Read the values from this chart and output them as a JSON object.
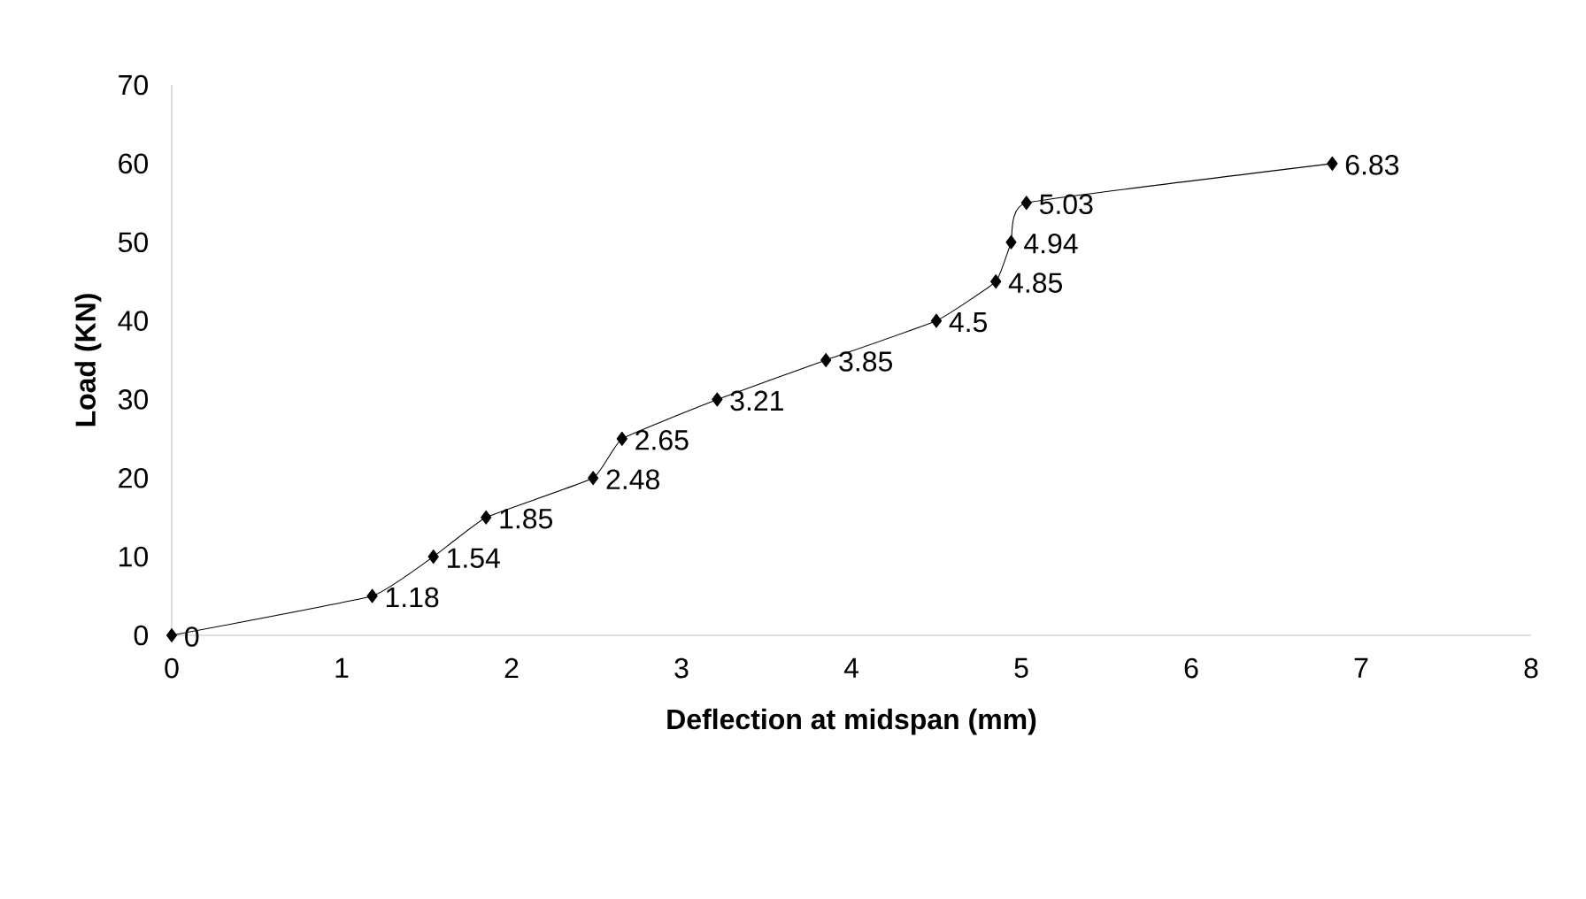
{
  "chart_data": {
    "type": "line",
    "xlabel": "Deflection at midspan (mm)",
    "ylabel": "Load (KN)",
    "x": [
      0,
      1.18,
      1.54,
      1.85,
      2.48,
      2.65,
      3.21,
      3.85,
      4.5,
      4.85,
      4.94,
      5.03,
      6.83
    ],
    "values": [
      0,
      5,
      10,
      15,
      20,
      25,
      30,
      35,
      40,
      45,
      50,
      55,
      60
    ],
    "annotations": [
      {
        "text": "0",
        "x": 0,
        "y": 0
      },
      {
        "text": "1.18",
        "x": 1.18,
        "y": 5
      },
      {
        "text": "1.54",
        "x": 1.54,
        "y": 10
      },
      {
        "text": "1.85",
        "x": 1.85,
        "y": 15
      },
      {
        "text": "2.48",
        "x": 2.48,
        "y": 20
      },
      {
        "text": "2.65",
        "x": 2.65,
        "y": 25
      },
      {
        "text": "3.21",
        "x": 3.21,
        "y": 30
      },
      {
        "text": "3.85",
        "x": 3.85,
        "y": 35
      },
      {
        "text": "4.5",
        "x": 4.5,
        "y": 40
      },
      {
        "text": "4.85",
        "x": 4.85,
        "y": 45
      },
      {
        "text": "4.94",
        "x": 4.94,
        "y": 50
      },
      {
        "text": "5.03",
        "x": 5.03,
        "y": 55
      },
      {
        "text": "6.83",
        "x": 6.83,
        "y": 60
      }
    ],
    "color": "#000000",
    "marker": "diamond",
    "line_style": "solid",
    "xlim": [
      0,
      8
    ],
    "xticks": [
      0,
      1,
      2,
      3,
      4,
      5,
      6,
      7,
      8
    ],
    "ylim": [
      0,
      70
    ],
    "yticks": [
      0,
      10,
      20,
      30,
      40,
      50,
      60,
      70
    ]
  }
}
